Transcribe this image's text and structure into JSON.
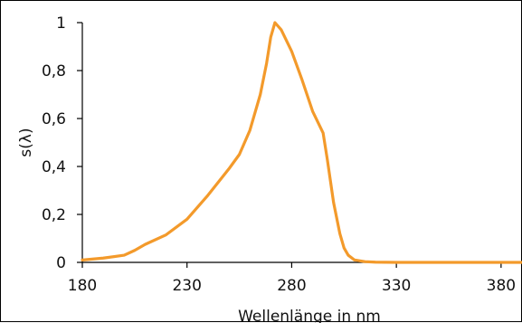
{
  "chart_data": {
    "type": "line",
    "title": "",
    "xlabel": "Wellenlänge in nm",
    "ylabel": "s(λ)",
    "xlim": [
      180,
      390
    ],
    "ylim": [
      0,
      1
    ],
    "xticks": [
      180,
      230,
      280,
      330,
      380
    ],
    "xtick_labels": [
      "180",
      "230",
      "280",
      "330",
      "380"
    ],
    "yticks": [
      0,
      0.2,
      0.4,
      0.6,
      0.8,
      1
    ],
    "ytick_labels": [
      "0",
      "0,2",
      "0,4",
      "0,6",
      "0,8",
      "1"
    ],
    "grid": false,
    "legend": "none",
    "series": [
      {
        "color": "#f39a2b",
        "x": [
          180,
          190,
          200,
          205,
          210,
          220,
          230,
          240,
          250,
          255,
          260,
          265,
          268,
          270,
          272,
          275,
          280,
          285,
          290,
          295,
          297,
          300,
          303,
          305,
          307,
          310,
          315,
          320,
          330,
          350,
          370,
          390
        ],
        "y": [
          0.01,
          0.018,
          0.03,
          0.05,
          0.075,
          0.115,
          0.18,
          0.28,
          0.39,
          0.45,
          0.55,
          0.7,
          0.83,
          0.94,
          1.0,
          0.97,
          0.88,
          0.76,
          0.63,
          0.54,
          0.43,
          0.25,
          0.12,
          0.06,
          0.03,
          0.01,
          0.003,
          0.001,
          0.0,
          0.0,
          0.0,
          0.0
        ]
      }
    ]
  }
}
